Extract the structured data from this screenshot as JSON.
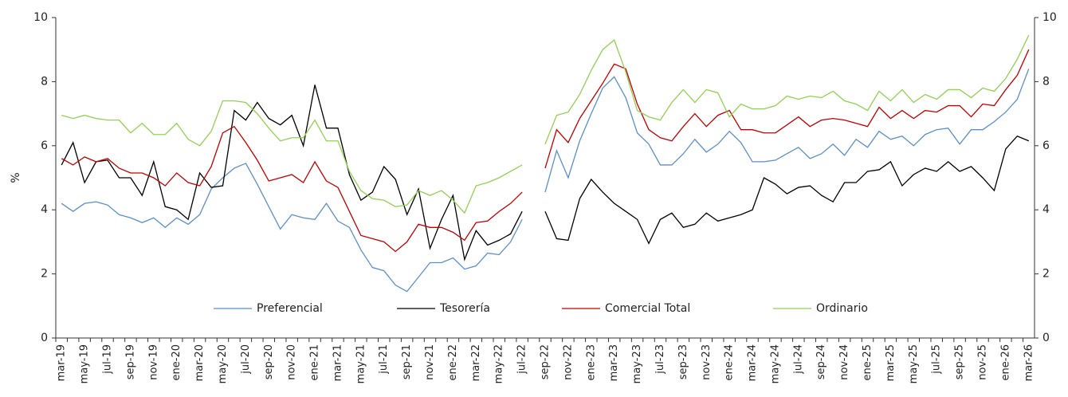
{
  "chart_data": {
    "type": "line",
    "y_label": "%",
    "categories": [
      "mar-19",
      null,
      "may-19",
      null,
      "jul-19",
      null,
      "sep-19",
      null,
      "nov-19",
      null,
      "ene-20",
      null,
      "mar-20",
      null,
      "may-20",
      null,
      "jul-20",
      null,
      "sep-20",
      null,
      "nov-20",
      null,
      "ene-21",
      null,
      "mar-21",
      null,
      "may-21",
      null,
      "jul-21",
      null,
      "sep-21",
      null,
      "nov-21",
      null,
      "ene-22",
      null,
      "mar-22",
      null,
      "may-22",
      null,
      "jul-22",
      null,
      "sep-22",
      null,
      "nov-22",
      null,
      "ene-23",
      null,
      "mar-23",
      null,
      "may-23",
      null,
      "jul-23",
      null,
      "sep-23",
      null,
      "nov-23",
      null,
      "ene-24",
      null,
      "mar-24",
      null,
      "may-24",
      null,
      "jul-24",
      null,
      "sep-24",
      null,
      "nov-24",
      null,
      "ene-25",
      null,
      "mar-25",
      null,
      "may-25",
      null,
      "jul-25",
      null,
      "sep-25",
      null,
      "nov-25",
      null,
      "ene-26",
      null,
      "mar-26"
    ],
    "series": [
      {
        "name": "Preferencial",
        "color": "#5b8fc9",
        "values": [
          4.2,
          3.95,
          4.2,
          4.25,
          4.15,
          3.85,
          3.75,
          3.6,
          3.75,
          3.45,
          3.75,
          3.55,
          3.85,
          4.65,
          5.0,
          5.3,
          5.45,
          4.8,
          4.1,
          3.4,
          3.85,
          3.75,
          3.7,
          4.2,
          3.65,
          3.45,
          2.75,
          2.2,
          2.1,
          1.65,
          1.45,
          1.9,
          2.35,
          2.35,
          2.5,
          2.15,
          2.25,
          2.65,
          2.6,
          3.0,
          3.7,
          null,
          4.55,
          5.85,
          5.0,
          6.15,
          7.0,
          7.8,
          8.15,
          7.5,
          6.4,
          6.05,
          5.4,
          5.4,
          5.75,
          6.2,
          5.8,
          6.05,
          6.45,
          6.1,
          5.5,
          5.5,
          5.55,
          5.75,
          5.95,
          5.6,
          5.75,
          6.05,
          5.7,
          6.2,
          5.95,
          6.45,
          6.2,
          6.3,
          6.0,
          6.35,
          6.5,
          6.55,
          6.05,
          6.5,
          6.5,
          6.75,
          7.05,
          7.45,
          8.4
        ]
      },
      {
        "name": "Tesorería",
        "color": "#000000",
        "values": [
          5.4,
          6.1,
          4.85,
          5.5,
          5.55,
          5.0,
          5.0,
          4.45,
          5.5,
          4.1,
          4.0,
          3.7,
          5.15,
          4.7,
          4.75,
          7.1,
          6.8,
          7.35,
          6.85,
          6.65,
          6.95,
          6.0,
          7.9,
          6.55,
          6.55,
          5.1,
          4.3,
          4.55,
          5.35,
          4.95,
          3.85,
          4.65,
          2.8,
          3.7,
          4.45,
          2.45,
          3.35,
          2.9,
          3.05,
          3.25,
          3.95,
          null,
          3.95,
          3.1,
          3.05,
          4.35,
          4.95,
          4.55,
          4.2,
          3.95,
          3.7,
          2.95,
          3.7,
          3.9,
          3.45,
          3.55,
          3.9,
          3.65,
          3.75,
          3.85,
          4.0,
          5.0,
          4.8,
          4.5,
          4.7,
          4.75,
          4.45,
          4.25,
          4.85,
          4.85,
          5.2,
          5.25,
          5.5,
          4.75,
          5.1,
          5.3,
          5.2,
          5.5,
          5.2,
          5.35,
          5.0,
          4.6,
          5.9,
          6.3,
          6.15
        ]
      },
      {
        "name": "Comercial Total",
        "color": "#c00000",
        "values": [
          5.6,
          5.4,
          5.65,
          5.5,
          5.6,
          5.3,
          5.15,
          5.15,
          5.0,
          4.75,
          5.15,
          4.85,
          4.75,
          5.35,
          6.4,
          6.6,
          6.1,
          5.55,
          4.9,
          5.0,
          5.1,
          4.85,
          5.5,
          4.9,
          4.7,
          3.95,
          3.2,
          3.1,
          3.0,
          2.7,
          3.0,
          3.55,
          3.45,
          3.45,
          3.3,
          3.05,
          3.6,
          3.65,
          3.95,
          4.2,
          4.55,
          null,
          5.3,
          6.5,
          6.1,
          6.85,
          7.4,
          7.95,
          8.55,
          8.4,
          7.3,
          6.5,
          6.25,
          6.15,
          6.6,
          7.0,
          6.6,
          6.95,
          7.1,
          6.5,
          6.5,
          6.4,
          6.4,
          6.65,
          6.9,
          6.6,
          6.8,
          6.85,
          6.8,
          6.7,
          6.6,
          7.2,
          6.85,
          7.1,
          6.85,
          7.1,
          7.05,
          7.25,
          7.25,
          6.9,
          7.3,
          7.25,
          7.75,
          8.2,
          9.0
        ]
      },
      {
        "name": "Ordinario",
        "color": "#92d050",
        "values": [
          6.95,
          6.85,
          6.95,
          6.85,
          6.8,
          6.8,
          6.4,
          6.7,
          6.35,
          6.35,
          6.7,
          6.2,
          6.0,
          6.45,
          7.4,
          7.4,
          7.35,
          7.0,
          6.55,
          6.15,
          6.25,
          6.25,
          6.8,
          6.15,
          6.15,
          5.2,
          4.6,
          4.35,
          4.3,
          4.1,
          4.15,
          4.6,
          4.45,
          4.6,
          4.3,
          3.9,
          4.75,
          4.85,
          5.0,
          5.2,
          5.4,
          null,
          6.05,
          6.95,
          7.05,
          7.6,
          8.35,
          9.0,
          9.3,
          8.3,
          7.1,
          6.9,
          6.8,
          7.35,
          7.75,
          7.35,
          7.75,
          7.65,
          6.9,
          7.3,
          7.15,
          7.15,
          7.25,
          7.55,
          7.45,
          7.55,
          7.5,
          7.7,
          7.4,
          7.3,
          7.1,
          7.7,
          7.4,
          7.75,
          7.35,
          7.6,
          7.45,
          7.75,
          7.75,
          7.5,
          7.8,
          7.7,
          8.1,
          8.7,
          9.45
        ]
      }
    ],
    "ylim": [
      0,
      10
    ],
    "yticks": [
      0,
      2,
      4,
      6,
      8,
      10
    ],
    "y2lim": [
      0,
      10
    ],
    "y2ticks": [
      0,
      2,
      4,
      6,
      8,
      10
    ],
    "grid": false,
    "legend": "bottom"
  }
}
